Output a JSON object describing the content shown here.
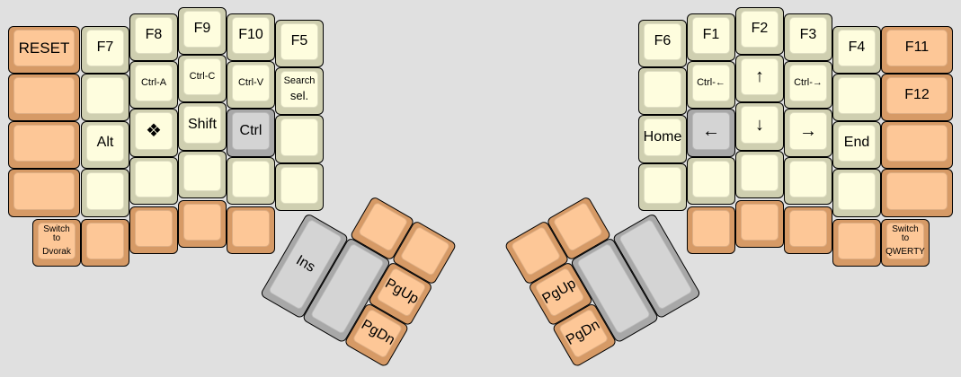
{
  "keyboard": {
    "colors": {
      "beige": "#fefdde",
      "orange": "#fdc797",
      "grey": "#d4d4d4",
      "background": "#e0e0e0"
    },
    "left": {
      "reset": "RESET",
      "f7": "F7",
      "f8": "F8",
      "f9": "F9",
      "f10": "F10",
      "f5": "F5",
      "ctrl_a": "Ctrl-A",
      "ctrl_c": "Ctrl-C",
      "ctrl_v": "Ctrl-V",
      "search_sel_1": "Search",
      "search_sel_2": "sel.",
      "alt": "Alt",
      "super": "❖",
      "shift": "Shift",
      "ctrl": "Ctrl",
      "switch_dvorak_1": "Switch",
      "switch_dvorak_2": "to",
      "switch_dvorak_3": "Dvorak",
      "ins": "Ins",
      "pgup": "PgUp",
      "pgdn": "PgDn"
    },
    "right": {
      "f6": "F6",
      "f1": "F1",
      "f2": "F2",
      "f3": "F3",
      "f4": "F4",
      "f11": "F11",
      "ctrl_left": "Ctrl-←",
      "up": "↑",
      "ctrl_right": "Ctrl-→",
      "f12": "F12",
      "home": "Home",
      "left_arrow": "←",
      "down": "↓",
      "right_arrow": "→",
      "end": "End",
      "switch_qwerty_1": "Switch",
      "switch_qwerty_2": "to",
      "switch_qwerty_3": "QWERTY",
      "pgup": "PgUp",
      "pgdn": "PgDn"
    }
  }
}
